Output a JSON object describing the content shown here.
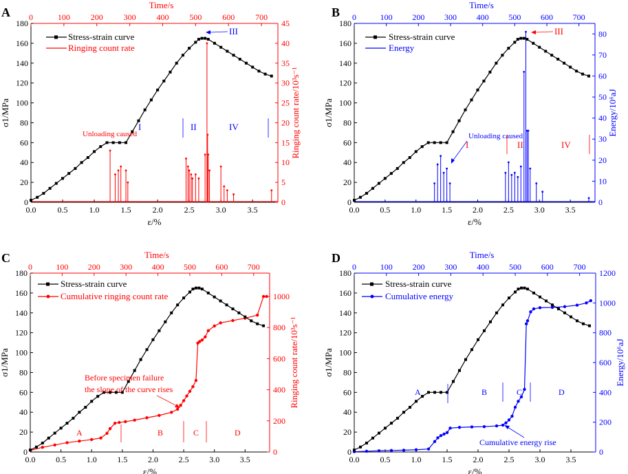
{
  "figure": {
    "shared_x_label": "ε/%",
    "shared_top_label": "Time/s",
    "shared_left_label": "σ1/MPa"
  },
  "colors": {
    "black": "#000000",
    "red": "#ff0000",
    "blue": "#0000ff"
  },
  "chart_data": [
    {
      "panel": "A",
      "type": "line",
      "title": "",
      "xlabel": "ε/%",
      "x_ticks": [
        "0.0",
        "0.5",
        "1.0",
        "1.5",
        "2.0",
        "2.5",
        "3.0",
        "3.5"
      ],
      "xlim": [
        0,
        3.9
      ],
      "top_axis": {
        "label": "Time/s",
        "ticks": [
          "0",
          "100",
          "200",
          "300",
          "400",
          "500",
          "600",
          "700"
        ],
        "lim": [
          0,
          750
        ]
      },
      "ylabel": "σ1/MPa",
      "y_ticks": [
        "0",
        "20",
        "40",
        "60",
        "80",
        "100",
        "120",
        "140",
        "160",
        "180"
      ],
      "ylim": [
        0,
        180
      ],
      "y2label": "Ringing count rate/10³s⁻¹",
      "y2_ticks": [
        "0",
        "5",
        "10",
        "15",
        "20",
        "25",
        "30",
        "35",
        "40",
        "45"
      ],
      "y2lim": [
        0,
        45
      ],
      "legend": [
        "Stress-strain curve",
        "Ringing count rate"
      ],
      "stress_strain": {
        "x": [
          0,
          0.1,
          0.2,
          0.3,
          0.4,
          0.5,
          0.6,
          0.7,
          0.8,
          0.9,
          1.0,
          1.1,
          1.2,
          1.3,
          1.4,
          1.5,
          1.6,
          1.7,
          1.8,
          1.9,
          2.0,
          2.1,
          2.2,
          2.3,
          2.4,
          2.5,
          2.6,
          2.65,
          2.7,
          2.75,
          2.8,
          2.9,
          3.0,
          3.1,
          3.2,
          3.3,
          3.4,
          3.5,
          3.6,
          3.7,
          3.8
        ],
        "y": [
          2,
          5,
          9,
          14,
          19,
          24,
          29,
          34,
          40,
          45,
          51,
          56,
          60,
          60,
          60,
          60,
          71,
          82,
          93,
          103,
          113,
          122,
          131,
          140,
          148,
          155,
          161,
          164,
          165,
          165,
          164,
          160,
          156,
          152,
          148,
          144,
          140,
          136,
          132,
          129,
          127
        ]
      },
      "series2": {
        "name": "Ringing count rate",
        "x": [
          1.25,
          1.33,
          1.38,
          1.42,
          1.5,
          1.53,
          2.45,
          2.48,
          2.5,
          2.53,
          2.55,
          2.6,
          2.65,
          2.75,
          2.78,
          2.79,
          2.8,
          2.82,
          3.0,
          3.05,
          3.1,
          3.2,
          3.8
        ],
        "values": [
          13,
          7,
          8,
          9,
          8,
          5,
          11,
          9,
          8,
          7,
          6,
          7,
          6,
          12,
          40,
          17,
          12,
          8,
          9,
          4,
          3,
          2,
          3
        ]
      },
      "annotations": {
        "unloading": "Unloading caused",
        "stage_I": "I",
        "stage_II": "II",
        "stage_III": "III",
        "stage_IV": "IV"
      }
    },
    {
      "panel": "B",
      "type": "line",
      "title": "",
      "xlabel": "ε/%",
      "x_ticks": [
        "0.0",
        "0.5",
        "1.0",
        "1.5",
        "2.0",
        "2.5",
        "3.0",
        "3.5"
      ],
      "xlim": [
        0,
        3.9
      ],
      "top_axis": {
        "label": "Time/s",
        "ticks": [
          "0",
          "100",
          "200",
          "300",
          "400",
          "500",
          "600",
          "700"
        ],
        "lim": [
          0,
          750
        ]
      },
      "ylabel": "σ1/MPa",
      "y_ticks": [
        "0",
        "20",
        "40",
        "60",
        "80",
        "100",
        "120",
        "140",
        "160",
        "180"
      ],
      "ylim": [
        0,
        180
      ],
      "y2label": "Energy/10⁶aJ",
      "y2_ticks": [
        "0",
        "10",
        "20",
        "30",
        "40",
        "50",
        "60",
        "70",
        "80"
      ],
      "y2lim": [
        0,
        85
      ],
      "legend": [
        "Stress-strain curve",
        "Energy"
      ],
      "stress_strain": {
        "x": [
          0,
          0.1,
          0.2,
          0.3,
          0.4,
          0.5,
          0.6,
          0.7,
          0.8,
          0.9,
          1.0,
          1.1,
          1.2,
          1.3,
          1.4,
          1.5,
          1.6,
          1.7,
          1.8,
          1.9,
          2.0,
          2.1,
          2.2,
          2.3,
          2.4,
          2.5,
          2.6,
          2.65,
          2.7,
          2.75,
          2.8,
          2.9,
          3.0,
          3.1,
          3.2,
          3.3,
          3.4,
          3.5,
          3.6,
          3.7,
          3.8
        ],
        "y": [
          2,
          5,
          9,
          14,
          19,
          24,
          29,
          34,
          40,
          45,
          51,
          56,
          60,
          60,
          60,
          60,
          71,
          82,
          93,
          103,
          113,
          122,
          131,
          140,
          148,
          155,
          161,
          164,
          165,
          165,
          164,
          160,
          156,
          152,
          148,
          144,
          140,
          136,
          132,
          129,
          127
        ]
      },
      "series2": {
        "name": "Energy",
        "x": [
          1.3,
          1.35,
          1.4,
          1.45,
          1.5,
          1.55,
          2.45,
          2.5,
          2.55,
          2.6,
          2.65,
          2.7,
          2.75,
          2.78,
          2.8,
          2.82,
          2.85,
          2.95,
          3.05,
          3.8
        ],
        "values": [
          9,
          18,
          22,
          14,
          16,
          9,
          14,
          19,
          13,
          14,
          12,
          17,
          62,
          81,
          34,
          34,
          16,
          9,
          5,
          2
        ]
      },
      "annotations": {
        "unloading": "Unloading caused",
        "stage_I": "I",
        "stage_II": "II",
        "stage_III": "III",
        "stage_IV": "IV"
      }
    },
    {
      "panel": "C",
      "type": "line",
      "title": "",
      "xlabel": "ε/%",
      "x_ticks": [
        "0.0",
        "0.5",
        "1.0",
        "1.5",
        "2.0",
        "2.5",
        "3.0",
        "3.5"
      ],
      "xlim": [
        0,
        3.9
      ],
      "top_axis": {
        "label": "Time/s",
        "ticks": [
          "0",
          "100",
          "200",
          "300",
          "400",
          "500",
          "600",
          "700"
        ],
        "lim": [
          0,
          750
        ]
      },
      "ylabel": "σ1/MPa",
      "y_ticks": [
        "0",
        "20",
        "40",
        "60",
        "80",
        "100",
        "120",
        "140",
        "160",
        "180"
      ],
      "ylim": [
        0,
        180
      ],
      "y2label": "Ringing count rate/10³s⁻¹",
      "y2_ticks": [
        "0",
        "200",
        "400",
        "600",
        "800",
        "1000"
      ],
      "y2lim": [
        0,
        1150
      ],
      "legend": [
        "Stress-strain curve",
        "Cumulative ringing count rate"
      ],
      "stress_strain": {
        "x": [
          0,
          0.1,
          0.2,
          0.3,
          0.4,
          0.5,
          0.6,
          0.7,
          0.8,
          0.9,
          1.0,
          1.1,
          1.2,
          1.3,
          1.4,
          1.5,
          1.6,
          1.7,
          1.8,
          1.9,
          2.0,
          2.1,
          2.2,
          2.3,
          2.4,
          2.5,
          2.6,
          2.65,
          2.7,
          2.75,
          2.8,
          2.9,
          3.0,
          3.1,
          3.2,
          3.3,
          3.4,
          3.5,
          3.6,
          3.7,
          3.8
        ],
        "y": [
          2,
          5,
          9,
          14,
          19,
          24,
          29,
          34,
          40,
          45,
          51,
          56,
          60,
          60,
          60,
          60,
          71,
          82,
          93,
          103,
          113,
          122,
          131,
          140,
          148,
          155,
          161,
          164,
          165,
          165,
          164,
          160,
          156,
          152,
          148,
          144,
          140,
          136,
          132,
          129,
          127
        ]
      },
      "series2": {
        "name": "Cumulative ringing count rate",
        "x": [
          0,
          0.2,
          0.4,
          0.6,
          0.8,
          1.0,
          1.15,
          1.25,
          1.3,
          1.38,
          1.45,
          1.55,
          1.7,
          1.9,
          2.1,
          2.3,
          2.4,
          2.45,
          2.5,
          2.55,
          2.6,
          2.65,
          2.7,
          2.73,
          2.76,
          2.8,
          2.85,
          2.9,
          3.0,
          3.1,
          3.3,
          3.5,
          3.7,
          3.8,
          3.85
        ],
        "values": [
          10,
          30,
          45,
          60,
          70,
          80,
          90,
          120,
          150,
          185,
          190,
          195,
          205,
          220,
          235,
          255,
          275,
          300,
          330,
          360,
          390,
          420,
          460,
          700,
          710,
          720,
          740,
          780,
          810,
          830,
          845,
          860,
          880,
          1000,
          1000
        ]
      },
      "annotations": {
        "note_line1": "Before specimen failure",
        "note_line2": "the slope of the curve rises",
        "stage_A": "A",
        "stage_B": "B",
        "stage_C": "C",
        "stage_D": "D"
      }
    },
    {
      "panel": "D",
      "type": "line",
      "title": "",
      "xlabel": "ε/%",
      "x_ticks": [
        "0.0",
        "0.5",
        "1.0",
        "1.5",
        "2.0",
        "2.5",
        "3.0",
        "3.5"
      ],
      "xlim": [
        0,
        3.9
      ],
      "top_axis": {
        "label": "Time/s",
        "ticks": [
          "0",
          "100",
          "200",
          "300",
          "400",
          "500",
          "600",
          "700"
        ],
        "lim": [
          0,
          750
        ]
      },
      "ylabel": "σ1/MPa",
      "y_ticks": [
        "0",
        "20",
        "40",
        "60",
        "80",
        "100",
        "120",
        "140",
        "160",
        "180"
      ],
      "ylim": [
        0,
        180
      ],
      "y2label": "Energy/10⁶aJ",
      "y2_ticks": [
        "0",
        "200",
        "400",
        "600",
        "800",
        "1000",
        "1200"
      ],
      "y2lim": [
        0,
        1200
      ],
      "legend": [
        "Stress-strain curve",
        "Cumulative energy"
      ],
      "stress_strain": {
        "x": [
          0,
          0.1,
          0.2,
          0.3,
          0.4,
          0.5,
          0.6,
          0.7,
          0.8,
          0.9,
          1.0,
          1.1,
          1.2,
          1.3,
          1.4,
          1.5,
          1.6,
          1.7,
          1.8,
          1.9,
          2.0,
          2.1,
          2.2,
          2.3,
          2.4,
          2.5,
          2.6,
          2.65,
          2.7,
          2.75,
          2.8,
          2.9,
          3.0,
          3.1,
          3.2,
          3.3,
          3.4,
          3.5,
          3.6,
          3.7,
          3.8
        ],
        "y": [
          2,
          5,
          9,
          14,
          19,
          24,
          29,
          34,
          40,
          45,
          51,
          56,
          60,
          60,
          60,
          60,
          71,
          82,
          93,
          103,
          113,
          122,
          131,
          140,
          148,
          155,
          161,
          164,
          165,
          165,
          164,
          160,
          156,
          152,
          148,
          144,
          140,
          136,
          132,
          129,
          127
        ]
      },
      "series2": {
        "name": "Cumulative energy",
        "x": [
          0,
          0.2,
          0.4,
          0.6,
          0.8,
          1.0,
          1.2,
          1.3,
          1.35,
          1.4,
          1.45,
          1.5,
          1.55,
          1.7,
          1.9,
          2.1,
          2.3,
          2.4,
          2.45,
          2.5,
          2.55,
          2.6,
          2.65,
          2.7,
          2.75,
          2.78,
          2.8,
          2.85,
          2.9,
          3.0,
          3.2,
          3.4,
          3.6,
          3.75,
          3.82
        ],
        "values": [
          2,
          5,
          8,
          10,
          12,
          15,
          20,
          70,
          95,
          110,
          120,
          130,
          160,
          165,
          168,
          170,
          175,
          180,
          195,
          215,
          240,
          300,
          340,
          370,
          420,
          860,
          880,
          940,
          960,
          968,
          970,
          975,
          985,
          1000,
          1015
        ]
      },
      "annotations": {
        "note": "Cumulative energy rise",
        "stage_A": "A",
        "stage_B": "B",
        "stage_C": "C",
        "stage_D": "D"
      }
    }
  ]
}
